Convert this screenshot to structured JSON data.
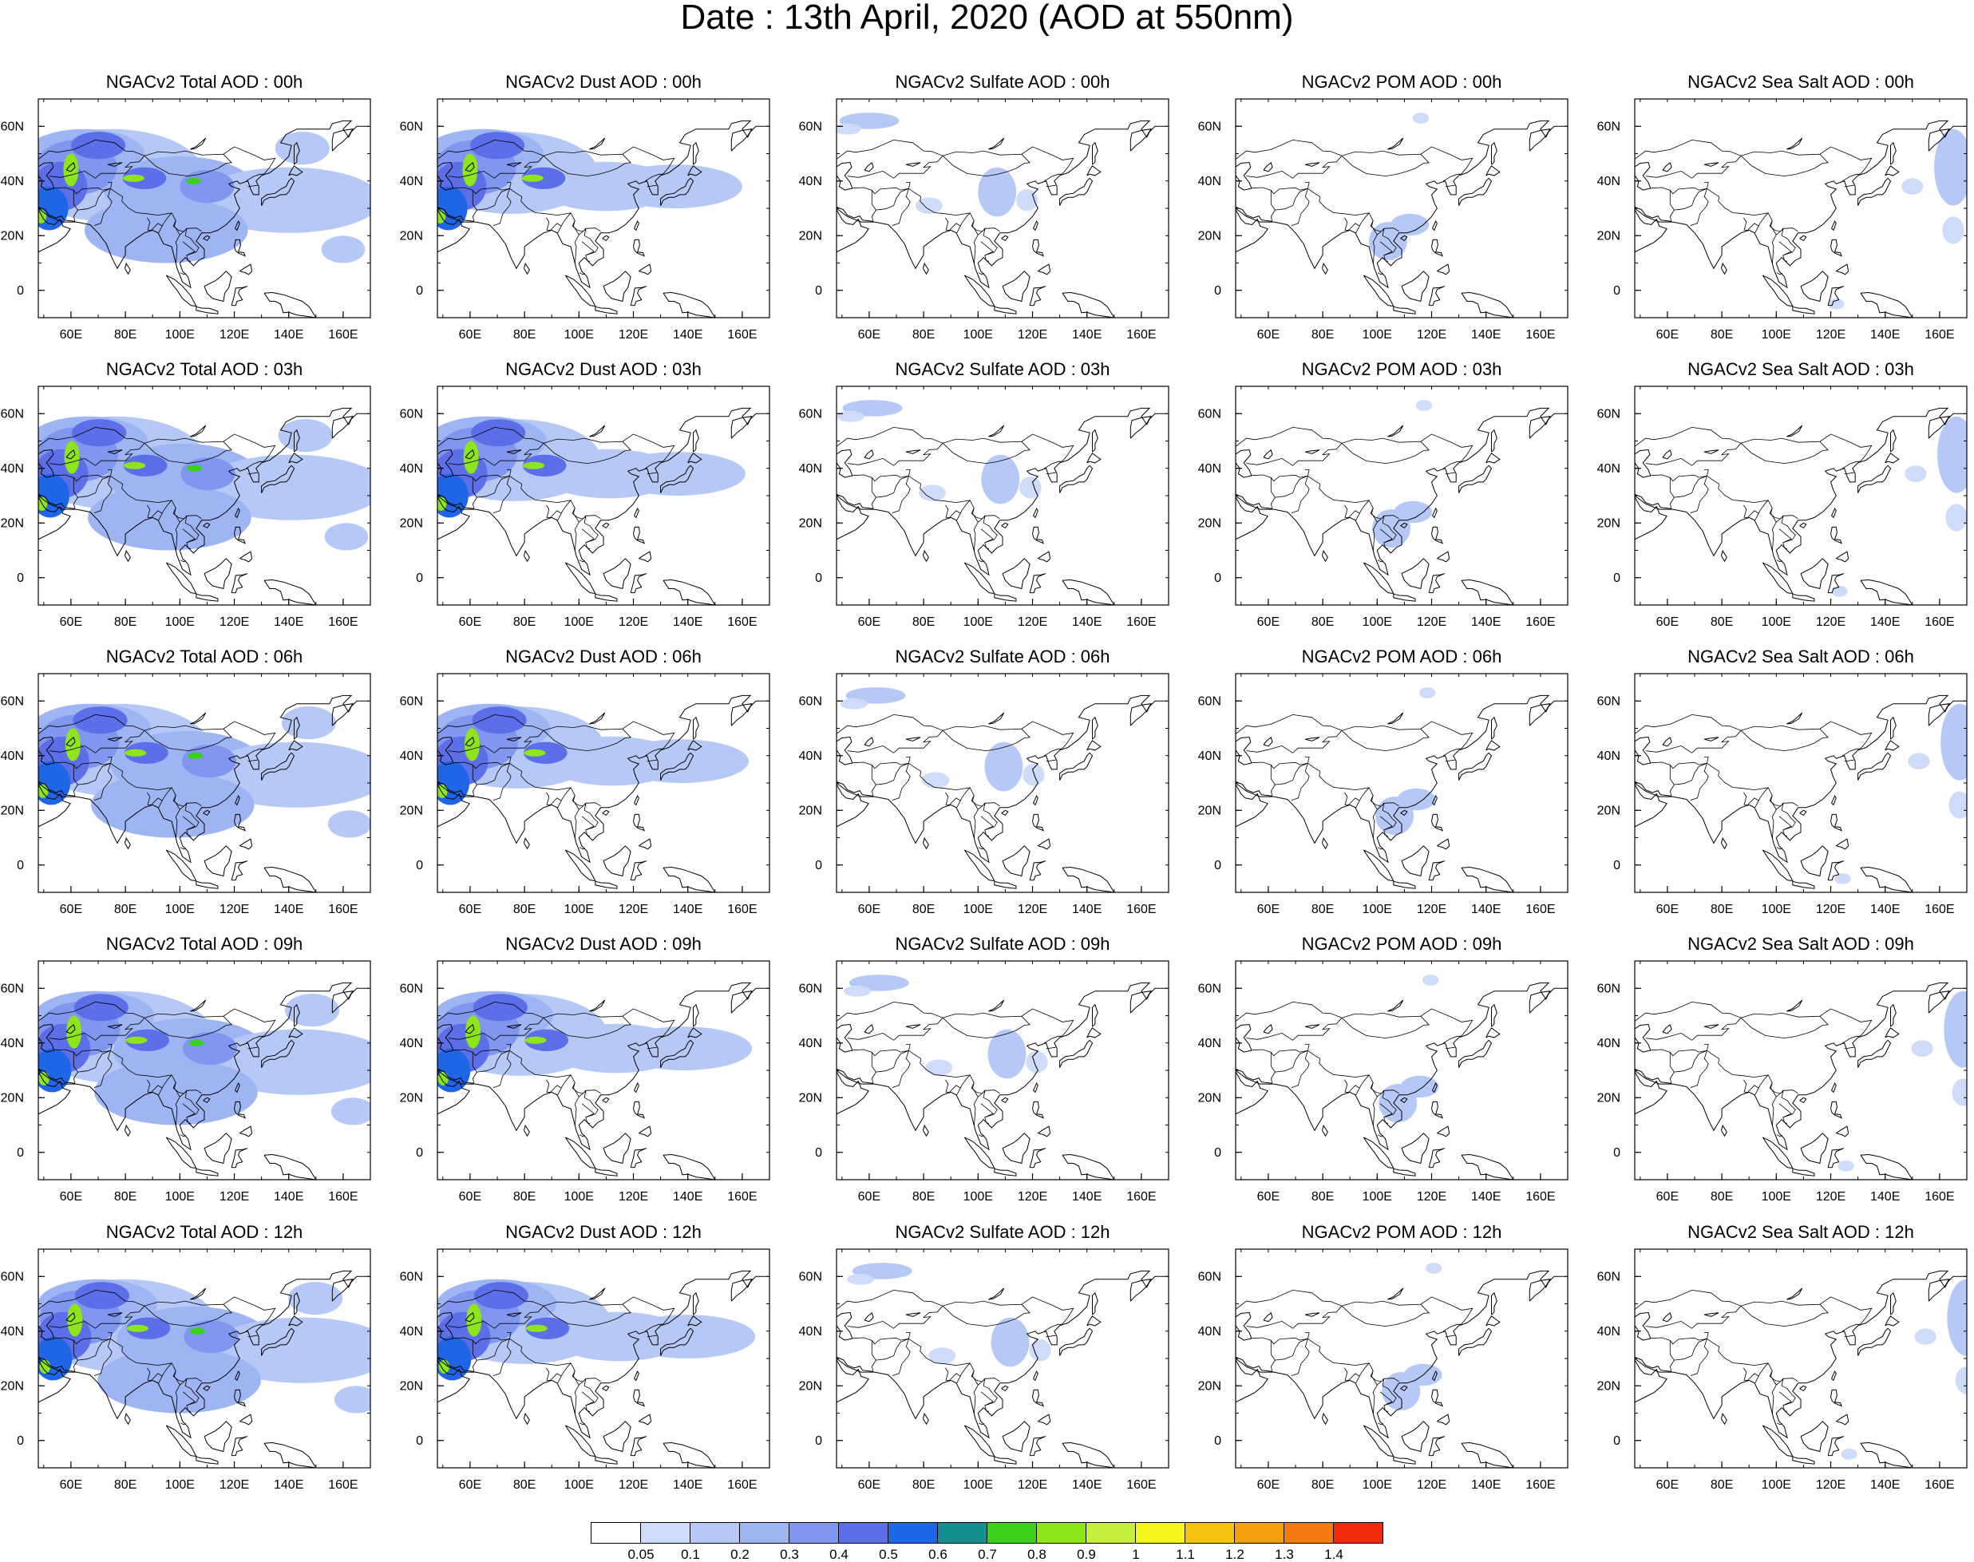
{
  "title": "Date : 13th April, 2020 (AOD at 550nm)",
  "panels": [
    {
      "title": "NGACv2 Total AOD : 00h",
      "species": "total",
      "hour": "00h"
    },
    {
      "title": "NGACv2 Dust AOD : 00h",
      "species": "dust",
      "hour": "00h"
    },
    {
      "title": "NGACv2 Sulfate AOD : 00h",
      "species": "sulfate",
      "hour": "00h"
    },
    {
      "title": "NGACv2 POM AOD : 00h",
      "species": "pom",
      "hour": "00h"
    },
    {
      "title": "NGACv2 Sea Salt AOD : 00h",
      "species": "seasalt",
      "hour": "00h"
    },
    {
      "title": "NGACv2 Total AOD : 03h",
      "species": "total",
      "hour": "03h"
    },
    {
      "title": "NGACv2 Dust AOD : 03h",
      "species": "dust",
      "hour": "03h"
    },
    {
      "title": "NGACv2 Sulfate AOD : 03h",
      "species": "sulfate",
      "hour": "03h"
    },
    {
      "title": "NGACv2 POM AOD : 03h",
      "species": "pom",
      "hour": "03h"
    },
    {
      "title": "NGACv2 Sea Salt AOD : 03h",
      "species": "seasalt",
      "hour": "03h"
    },
    {
      "title": "NGACv2 Total AOD : 06h",
      "species": "total",
      "hour": "06h"
    },
    {
      "title": "NGACv2 Dust AOD : 06h",
      "species": "dust",
      "hour": "06h"
    },
    {
      "title": "NGACv2 Sulfate AOD : 06h",
      "species": "sulfate",
      "hour": "06h"
    },
    {
      "title": "NGACv2 POM AOD : 06h",
      "species": "pom",
      "hour": "06h"
    },
    {
      "title": "NGACv2 Sea Salt AOD : 06h",
      "species": "seasalt",
      "hour": "06h"
    },
    {
      "title": "NGACv2 Total AOD : 09h",
      "species": "total",
      "hour": "09h"
    },
    {
      "title": "NGACv2 Dust AOD : 09h",
      "species": "dust",
      "hour": "09h"
    },
    {
      "title": "NGACv2 Sulfate AOD : 09h",
      "species": "sulfate",
      "hour": "09h"
    },
    {
      "title": "NGACv2 POM AOD : 09h",
      "species": "pom",
      "hour": "09h"
    },
    {
      "title": "NGACv2 Sea Salt  AOD : 09h",
      "species": "seasalt",
      "hour": "09h"
    },
    {
      "title": "NGACv2 Total AOD  : 12h",
      "species": "total",
      "hour": "12h"
    },
    {
      "title": "NGACv2 Dust AOD : 12h",
      "species": "dust",
      "hour": "12h"
    },
    {
      "title": "NGACv2 Sulfate AOD : 12h",
      "species": "sulfate",
      "hour": "12h"
    },
    {
      "title": "NGACv2 POM  AOD : 12h",
      "species": "pom",
      "hour": "12h"
    },
    {
      "title": "NGACv2 Sea Salt  AOD : 12h",
      "species": "seasalt",
      "hour": "12h"
    }
  ],
  "map": {
    "lon_range": [
      48,
      170
    ],
    "lat_range": [
      -10,
      70
    ],
    "x_ticks": [
      "60E",
      "80E",
      "100E",
      "120E",
      "140E",
      "160E"
    ],
    "x_tick_values": [
      60,
      80,
      100,
      120,
      140,
      160
    ],
    "y_ticks": [
      "0",
      "20N",
      "40N",
      "60N"
    ],
    "y_tick_values": [
      0,
      20,
      40,
      60
    ]
  },
  "colorbar": {
    "colors": [
      "#ffffff",
      "#cfdcf9",
      "#b6c8f6",
      "#9fb5f3",
      "#8096ef",
      "#5c6fe9",
      "#1f66e6",
      "#168f92",
      "#3bd11b",
      "#8ee61a",
      "#c4ef3b",
      "#f5f51c",
      "#f6c410",
      "#f59f0c",
      "#f47a0e",
      "#f2290c"
    ],
    "labels": [
      "0.05",
      "0.1",
      "0.2",
      "0.3",
      "0.4",
      "0.5",
      "0.6",
      "0.7",
      "0.8",
      "0.9",
      "1",
      "1.1",
      "1.2",
      "1.3",
      "1.4"
    ]
  }
}
